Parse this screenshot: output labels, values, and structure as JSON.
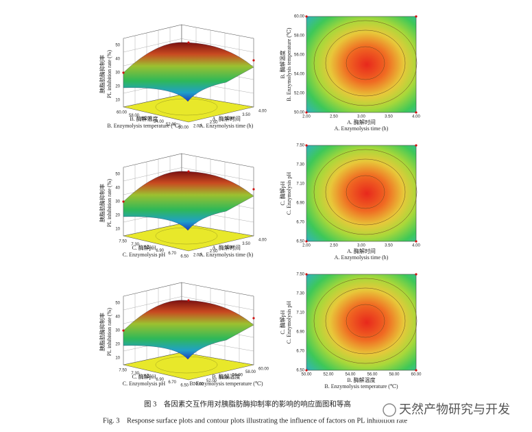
{
  "panels": [
    {
      "surface": {
        "z_label_cn": "胰脂肪酶抑制率",
        "z_label_en": "PL inhibition rate (%)",
        "z_ticks": [
          "10",
          "20",
          "30",
          "40",
          "50"
        ],
        "x_label_cn": "A. 酶解时间",
        "x_label_en": "A. Enzymolysis time (h)",
        "x_ticks": [
          "2.00",
          "2.50",
          "3.00",
          "3.50",
          "4.00"
        ],
        "y_label_cn": "B. 酶解温度",
        "y_label_en": "B. Enzymolysis temperature (℃)",
        "y_ticks": [
          "60.00",
          "58.00",
          "56.00",
          "54.00",
          "52.00",
          "50.00"
        ]
      },
      "contour": {
        "x_label_cn": "A. 酶解时间",
        "x_label_en": "A. Enzymolysis time (h)",
        "x_ticks": [
          "2.00",
          "2.50",
          "3.00",
          "3.50",
          "4.00"
        ],
        "y_label_cn": "B. 酶解温度",
        "y_label_en": "B. Enzymolysis temperature (℃)",
        "y_ticks": [
          "50.00",
          "52.00",
          "54.00",
          "56.00",
          "58.00",
          "60.00"
        ]
      }
    },
    {
      "surface": {
        "z_label_cn": "胰脂肪酶抑制率",
        "z_label_en": "PL inhibition rate (%)",
        "z_ticks": [
          "10",
          "20",
          "30",
          "40",
          "50"
        ],
        "x_label_cn": "A. 酶解时间",
        "x_label_en": "A. Enzymolysis time (h)",
        "x_ticks": [
          "2.00",
          "2.50",
          "3.00",
          "3.50",
          "4.00"
        ],
        "y_label_cn": "C. 酶解pH",
        "y_label_en": "C. Enzymolysis pH",
        "y_ticks": [
          "7.50",
          "7.30",
          "7.10",
          "6.90",
          "6.70",
          "6.50"
        ]
      },
      "contour": {
        "x_label_cn": "A. 酶解时间",
        "x_label_en": "A. Enzymolysis time (h)",
        "x_ticks": [
          "2.00",
          "2.50",
          "3.00",
          "3.50",
          "4.00"
        ],
        "y_label_cn": "C. 酶解pH",
        "y_label_en": "C. Enzymolysis pH",
        "y_ticks": [
          "6.50",
          "6.70",
          "6.90",
          "7.10",
          "7.30",
          "7.50"
        ]
      }
    },
    {
      "surface": {
        "z_label_cn": "胰脂肪酶抑制率",
        "z_label_en": "PL inhibition rate (%)",
        "z_ticks": [
          "10",
          "20",
          "30",
          "40",
          "50"
        ],
        "x_label_cn": "B. 酶解温度",
        "x_label_en": "B. Enzymolysis temperature (℃)",
        "x_ticks": [
          "50.00",
          "52.00",
          "54.00",
          "56.00",
          "58.00",
          "60.00"
        ],
        "y_label_cn": "C. 酶解pH",
        "y_label_en": "C. Enzymolysis pH",
        "y_ticks": [
          "7.50",
          "7.30",
          "7.10",
          "6.90",
          "6.70",
          "6.50"
        ]
      },
      "contour": {
        "x_label_cn": "B. 酶解温度",
        "x_label_en": "B. Enzymolysis temperature (℃)",
        "x_ticks": [
          "50.00",
          "52.00",
          "54.00",
          "56.00",
          "58.00",
          "60.00"
        ],
        "y_label_cn": "C. 酶解pH",
        "y_label_en": "C. Enzymolysis pH",
        "y_ticks": [
          "6.50",
          "6.70",
          "6.90",
          "7.10",
          "7.30",
          "7.50"
        ]
      }
    }
  ],
  "caption": {
    "cn": "图 3　各因素交互作用对胰脂肪酶抑制率的影响的响应面图和等高",
    "en": "Fig. 3　Response surface plots and contour plots illustrating the influence of factors on PL inhibition rate"
  },
  "watermark": "天然产物研究与开发"
}
